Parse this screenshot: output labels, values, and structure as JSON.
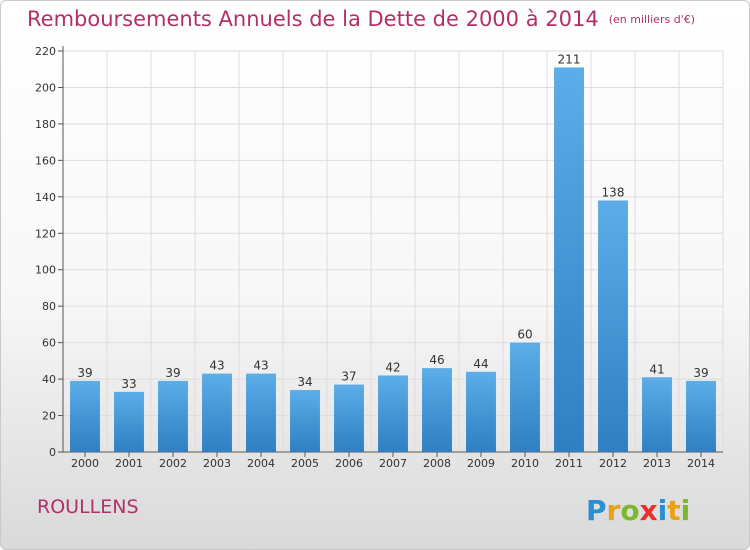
{
  "header": {
    "title": "Remboursements Annuels de la Dette de 2000 à 2014",
    "unit": "(en milliers d'€)"
  },
  "footer": {
    "location": "ROULLENS",
    "logo_text": "Proxiti"
  },
  "colors": {
    "title": "#b0306a",
    "bar_top": "#5dade8",
    "bar_bottom": "#2f7fc2",
    "grid": "#dddddd"
  },
  "chart_data": {
    "type": "bar",
    "title": "Remboursements Annuels de la Dette de 2000 à 2014",
    "xlabel": "",
    "ylabel": "",
    "categories": [
      "2000",
      "2001",
      "2002",
      "2003",
      "2004",
      "2005",
      "2006",
      "2007",
      "2008",
      "2009",
      "2010",
      "2011",
      "2012",
      "2013",
      "2014"
    ],
    "values": [
      39,
      33,
      39,
      43,
      43,
      34,
      37,
      42,
      46,
      44,
      60,
      211,
      138,
      41,
      39
    ],
    "yticks": [
      0,
      20,
      40,
      60,
      80,
      100,
      120,
      140,
      160,
      180,
      200,
      220
    ],
    "ylim": [
      0,
      220
    ],
    "grid": true,
    "data_labels": true
  }
}
